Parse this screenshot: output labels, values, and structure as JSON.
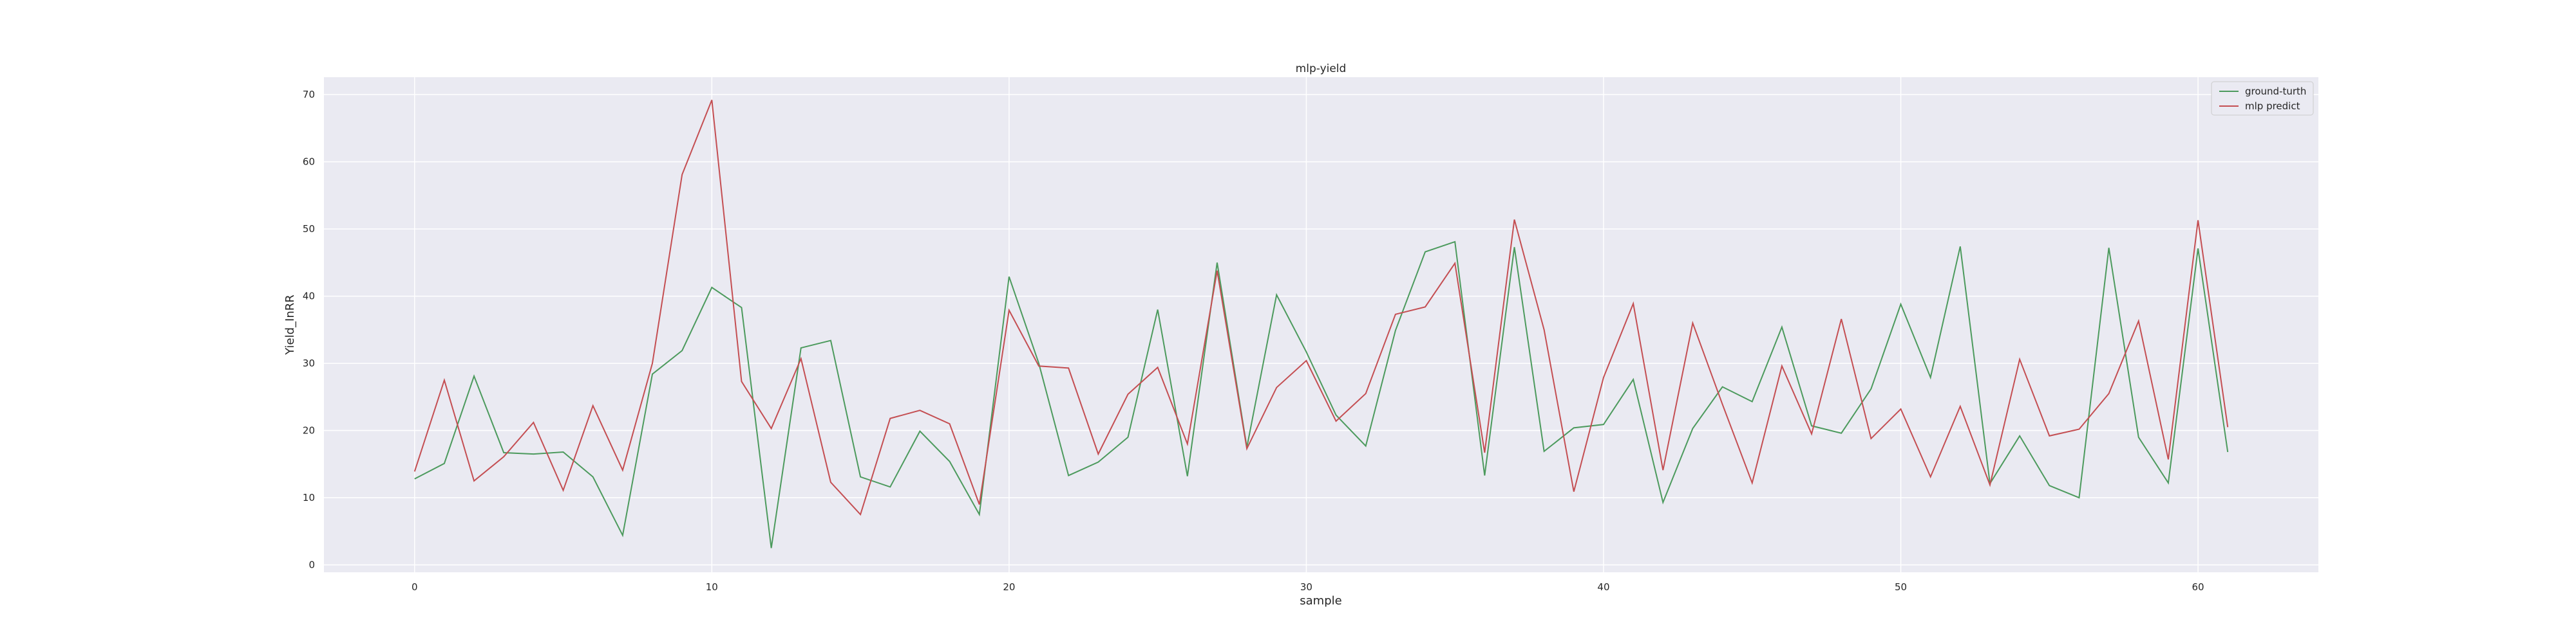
{
  "chart_data": {
    "type": "line",
    "title": "mlp-yield",
    "xlabel": "sample",
    "ylabel": "Yield_InRR",
    "xlim": [
      -3.05,
      64.05
    ],
    "ylim": [
      -1.1,
      72.6
    ],
    "xticks": [
      0,
      10,
      20,
      30,
      40,
      50,
      60
    ],
    "yticks": [
      0,
      10,
      20,
      30,
      40,
      50,
      60,
      70
    ],
    "grid": true,
    "legend_position": "top-right",
    "x": [
      0,
      1,
      2,
      3,
      4,
      5,
      6,
      7,
      8,
      9,
      10,
      11,
      12,
      13,
      14,
      15,
      16,
      17,
      18,
      19,
      20,
      21,
      22,
      23,
      24,
      25,
      26,
      27,
      28,
      29,
      30,
      31,
      32,
      33,
      34,
      35,
      36,
      37,
      38,
      39,
      40,
      41,
      42,
      43,
      44,
      45,
      46,
      47,
      48,
      49,
      50,
      51,
      52,
      53,
      54,
      55,
      56,
      57,
      58,
      59,
      60,
      61
    ],
    "series": [
      {
        "name": "ground-turth",
        "color": "#4c9a5d",
        "values": [
          12.8,
          15.1,
          28.1,
          16.7,
          16.5,
          16.8,
          13.1,
          4.4,
          28.4,
          31.9,
          41.3,
          38.3,
          2.5,
          32.3,
          33.4,
          13.1,
          11.6,
          19.9,
          15.4,
          7.5,
          42.9,
          30.0,
          13.3,
          15.3,
          19.0,
          38.0,
          13.2,
          45.0,
          17.5,
          40.2,
          31.7,
          22.3,
          17.7,
          34.9,
          46.6,
          48.1,
          13.3,
          47.3,
          16.9,
          20.4,
          20.9,
          27.6,
          9.3,
          20.3,
          26.5,
          24.3,
          35.4,
          20.7,
          19.6,
          26.2,
          38.8,
          27.9,
          47.4,
          12.1,
          19.2,
          11.8,
          10.0,
          47.2,
          19.0,
          12.2,
          47.1,
          16.8
        ]
      },
      {
        "name": "mlp predict",
        "color": "#c44e52",
        "values": [
          13.9,
          27.5,
          12.5,
          16.1,
          21.2,
          11.1,
          23.7,
          14.1,
          30.0,
          58.1,
          69.2,
          27.3,
          20.3,
          30.7,
          12.3,
          7.5,
          21.8,
          23.0,
          21.0,
          9.0,
          37.9,
          29.6,
          29.3,
          16.5,
          25.4,
          29.4,
          18.0,
          43.8,
          17.3,
          26.4,
          30.4,
          21.4,
          25.5,
          37.3,
          38.4,
          44.9,
          16.7,
          51.4,
          35.0,
          10.9,
          27.9,
          38.9,
          14.1,
          36.0,
          23.9,
          12.2,
          29.6,
          19.5,
          36.6,
          18.8,
          23.2,
          13.1,
          23.6,
          11.9,
          30.6,
          19.2,
          20.2,
          25.5,
          36.3,
          15.7,
          51.3,
          20.5
        ]
      }
    ]
  }
}
